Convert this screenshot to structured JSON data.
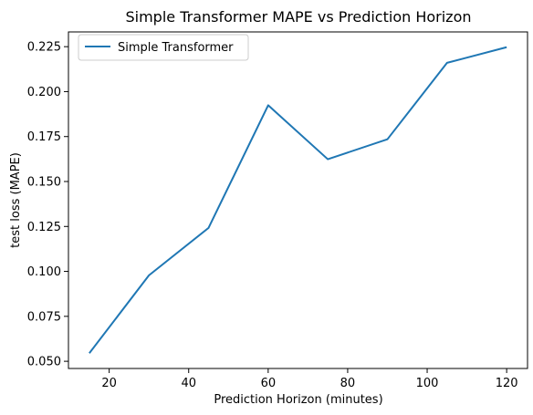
{
  "chart_data": {
    "type": "line",
    "title": "Simple Transformer MAPE vs Prediction Horizon",
    "xlabel": "Prediction Horizon (minutes)",
    "ylabel": "test loss (MAPE)",
    "x": [
      15,
      30,
      45,
      60,
      75,
      90,
      105,
      120
    ],
    "series": [
      {
        "name": "Simple Transformer",
        "color": "#1f77b4",
        "values": [
          0.0545,
          0.0978,
          0.1242,
          0.1924,
          0.1624,
          0.1735,
          0.216,
          0.2247
        ]
      }
    ],
    "xticks": [
      20,
      40,
      60,
      80,
      100,
      120
    ],
    "xtick_labels": [
      "20",
      "40",
      "60",
      "80",
      "100",
      "120"
    ],
    "yticks": [
      0.05,
      0.075,
      0.1,
      0.125,
      0.15,
      0.175,
      0.2,
      0.225
    ],
    "ytick_labels": [
      "0.050",
      "0.075",
      "0.100",
      "0.125",
      "0.150",
      "0.175",
      "0.200",
      "0.225"
    ],
    "xlim": [
      9.75,
      125.25
    ],
    "ylim": [
      0.046,
      0.2332
    ],
    "grid": false,
    "legend_position": "upper-left"
  }
}
